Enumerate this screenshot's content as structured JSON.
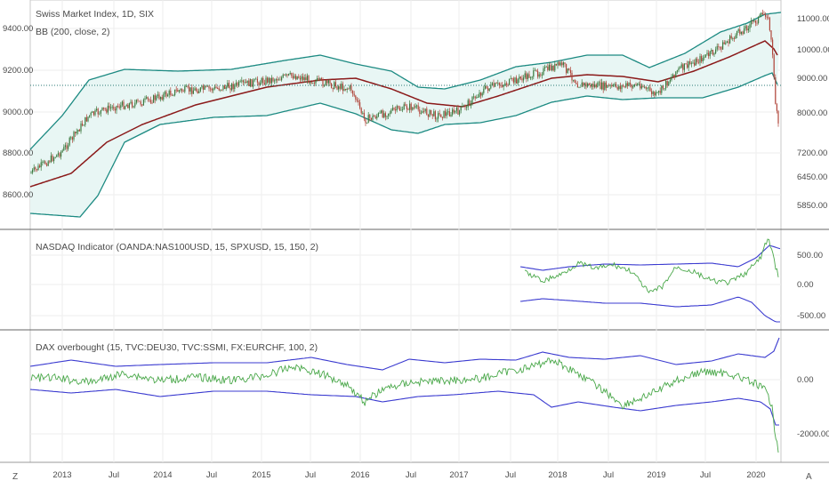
{
  "panes": {
    "main": {
      "title": "Swiss Market Index, 1D, SIX",
      "indicator": "BB (200, close, 2)",
      "left_ticks": [
        "9400.00",
        "9200.00",
        "9000.00",
        "8800.00",
        "8600.00"
      ],
      "right_ticks": [
        "11000.00",
        "10000.00",
        "9000.00",
        "8000.00",
        "7200.00",
        "6450.00",
        "5850.00"
      ]
    },
    "nasdaq": {
      "title": "NASDAQ Indicator (OANDA:NAS100USD, 15, SPXUSD, 15, 150, 2)",
      "right_ticks": [
        "500.00",
        "0.00",
        "-500.00"
      ]
    },
    "dax": {
      "title": "DAX overbought (15, TVC:DEU30, TVC:SSMI, FX:EURCHF, 100, 2)",
      "right_ticks": [
        "0.00",
        "-2000.00"
      ]
    }
  },
  "time_axis": [
    "2013",
    "Jul",
    "2014",
    "Jul",
    "2015",
    "Jul",
    "2016",
    "Jul",
    "2017",
    "Jul",
    "2018",
    "Jul",
    "2019",
    "Jul",
    "2020"
  ],
  "buttons": {
    "zoom": "Z",
    "auto": "A"
  },
  "colors": {
    "candle_up": "#3a7a3f",
    "candle_down": "#b0453a",
    "bb_band": "#1c8a82",
    "bb_fill": "#e8f6f4",
    "bb_basis": "#8b1a1a",
    "indicator_band": "#3b3bd0",
    "indicator_line": "#4aa84a",
    "ref_line": "#2a7a75"
  }
}
